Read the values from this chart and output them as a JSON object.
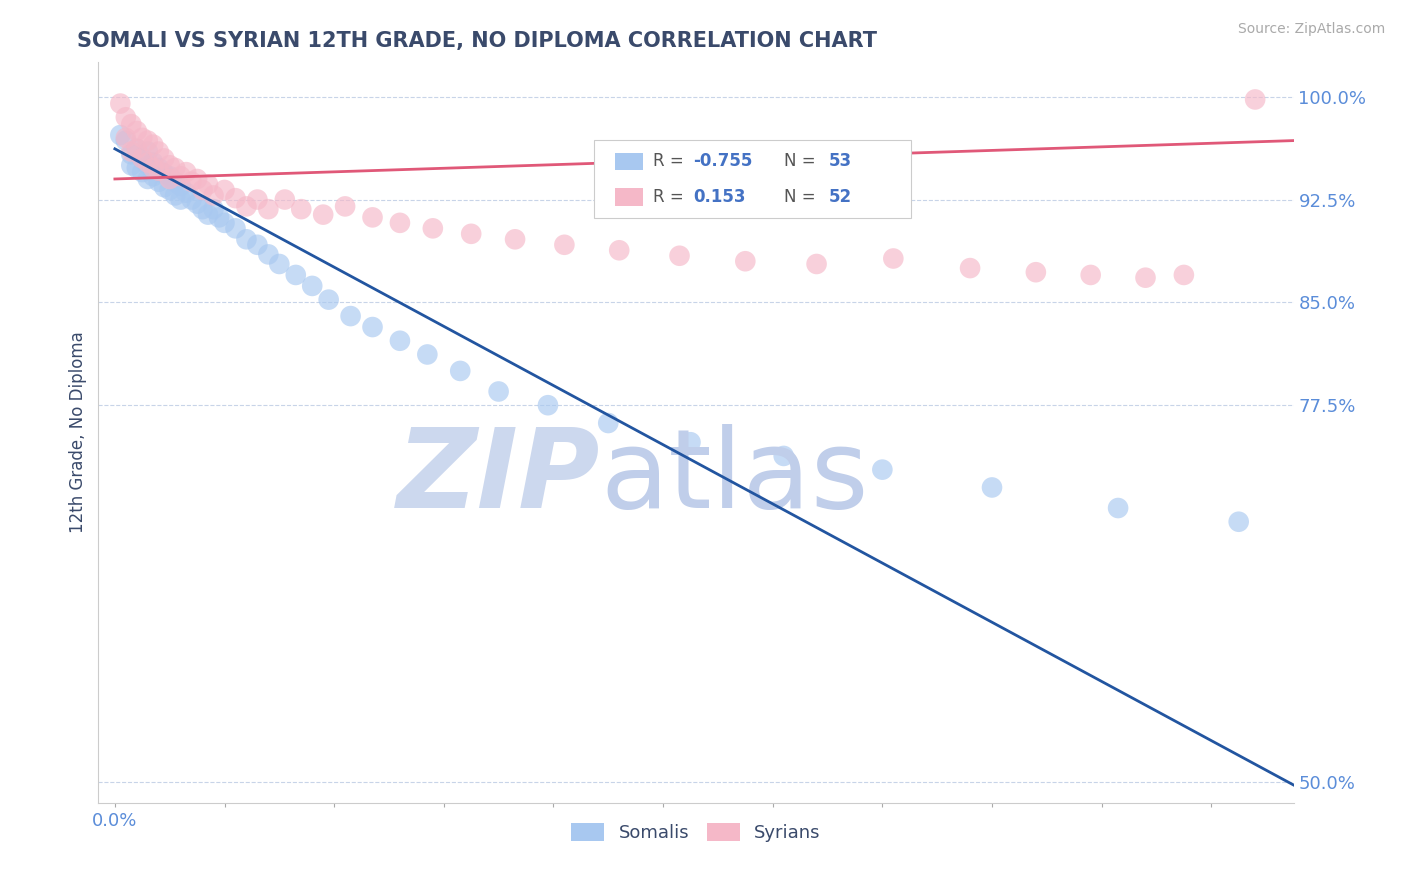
{
  "title": "SOMALI VS SYRIAN 12TH GRADE, NO DIPLOMA CORRELATION CHART",
  "source_text": "Source: ZipAtlas.com",
  "ylabel": "12th Grade, No Diploma",
  "xlim": [
    -0.003,
    0.215
  ],
  "ylim": [
    0.485,
    1.025
  ],
  "ytick_labels": [
    "50.0%",
    "77.5%",
    "85.0%",
    "92.5%",
    "100.0%"
  ],
  "ytick_values": [
    0.5,
    0.775,
    0.85,
    0.925,
    1.0
  ],
  "xtick_values": [
    0.0,
    0.02,
    0.04,
    0.06,
    0.08,
    0.1,
    0.12,
    0.14,
    0.16,
    0.18,
    0.2
  ],
  "blue_R": "-0.755",
  "blue_N": "53",
  "pink_R": "0.153",
  "pink_N": "52",
  "blue_color": "#a8c8f0",
  "pink_color": "#f5b8c8",
  "blue_line_color": "#2255a0",
  "pink_line_color": "#e05878",
  "title_color": "#3a4a6b",
  "axis_label_color": "#3a4a6b",
  "tick_label_color": "#5b8dd9",
  "legend_R_color": "#4472c4",
  "watermark_zip_color": "#ccd8ee",
  "watermark_atlas_color": "#c0ceea",
  "somali_x": [
    0.001,
    0.002,
    0.003,
    0.003,
    0.004,
    0.004,
    0.005,
    0.005,
    0.006,
    0.006,
    0.006,
    0.007,
    0.007,
    0.008,
    0.008,
    0.009,
    0.009,
    0.01,
    0.01,
    0.011,
    0.011,
    0.012,
    0.012,
    0.013,
    0.014,
    0.015,
    0.016,
    0.017,
    0.018,
    0.019,
    0.02,
    0.022,
    0.024,
    0.026,
    0.028,
    0.03,
    0.033,
    0.036,
    0.039,
    0.043,
    0.047,
    0.052,
    0.057,
    0.063,
    0.07,
    0.079,
    0.09,
    0.105,
    0.122,
    0.14,
    0.16,
    0.183,
    0.205
  ],
  "somali_y": [
    0.972,
    0.968,
    0.958,
    0.95,
    0.962,
    0.948,
    0.955,
    0.945,
    0.96,
    0.95,
    0.94,
    0.952,
    0.942,
    0.948,
    0.938,
    0.944,
    0.934,
    0.942,
    0.932,
    0.938,
    0.928,
    0.935,
    0.925,
    0.93,
    0.925,
    0.922,
    0.918,
    0.914,
    0.918,
    0.912,
    0.908,
    0.904,
    0.896,
    0.892,
    0.885,
    0.878,
    0.87,
    0.862,
    0.852,
    0.84,
    0.832,
    0.822,
    0.812,
    0.8,
    0.785,
    0.775,
    0.762,
    0.748,
    0.738,
    0.728,
    0.715,
    0.7,
    0.69
  ],
  "syrian_x": [
    0.001,
    0.002,
    0.002,
    0.003,
    0.003,
    0.004,
    0.004,
    0.005,
    0.005,
    0.006,
    0.006,
    0.007,
    0.007,
    0.008,
    0.008,
    0.009,
    0.01,
    0.01,
    0.011,
    0.012,
    0.013,
    0.014,
    0.015,
    0.016,
    0.017,
    0.018,
    0.02,
    0.022,
    0.024,
    0.026,
    0.028,
    0.031,
    0.034,
    0.038,
    0.042,
    0.047,
    0.052,
    0.058,
    0.065,
    0.073,
    0.082,
    0.092,
    0.103,
    0.115,
    0.128,
    0.142,
    0.156,
    0.168,
    0.178,
    0.188,
    0.195,
    0.208
  ],
  "syrian_y": [
    0.995,
    0.985,
    0.97,
    0.98,
    0.96,
    0.975,
    0.962,
    0.97,
    0.955,
    0.968,
    0.952,
    0.965,
    0.948,
    0.96,
    0.946,
    0.955,
    0.95,
    0.94,
    0.948,
    0.942,
    0.945,
    0.938,
    0.94,
    0.932,
    0.936,
    0.928,
    0.932,
    0.926,
    0.92,
    0.925,
    0.918,
    0.925,
    0.918,
    0.914,
    0.92,
    0.912,
    0.908,
    0.904,
    0.9,
    0.896,
    0.892,
    0.888,
    0.884,
    0.88,
    0.878,
    0.882,
    0.875,
    0.872,
    0.87,
    0.868,
    0.87,
    0.998
  ],
  "blue_trendline_x": [
    0.0,
    0.215
  ],
  "blue_trendline_y": [
    0.962,
    0.498
  ],
  "pink_trendline_x": [
    0.0,
    0.215
  ],
  "pink_trendline_y": [
    0.94,
    0.968
  ]
}
